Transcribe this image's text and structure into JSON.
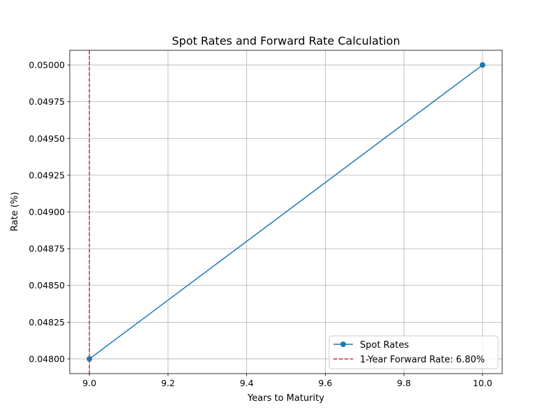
{
  "chart_data": {
    "type": "line",
    "title": "Spot Rates and Forward Rate Calculation",
    "xlabel": "Years to Maturity",
    "ylabel": "Rate (%)",
    "xlim": [
      8.95,
      10.05
    ],
    "ylim": [
      0.0479,
      0.0501
    ],
    "x_ticks": [
      9.0,
      9.2,
      9.4,
      9.6,
      9.8,
      10.0
    ],
    "x_tick_labels": [
      "9.0",
      "9.2",
      "9.4",
      "9.6",
      "9.8",
      "10.0"
    ],
    "y_ticks": [
      0.048,
      0.04825,
      0.0485,
      0.04875,
      0.049,
      0.04925,
      0.0495,
      0.04975,
      0.05
    ],
    "y_tick_labels": [
      "0.04800",
      "0.04825",
      "0.04850",
      "0.04875",
      "0.04900",
      "0.04925",
      "0.04950",
      "0.04975",
      "0.05000"
    ],
    "grid": true,
    "legend_position": "lower-right",
    "series": [
      {
        "name": "Spot Rates",
        "style": "solid-line-with-circle-markers",
        "color": "#1f77b4",
        "x": [
          9,
          10
        ],
        "y": [
          0.048,
          0.05
        ]
      }
    ],
    "vlines": [
      {
        "name": "1-Year Forward Rate: 6.80%",
        "x": 9,
        "style": "dashed",
        "color": "#d62728"
      }
    ]
  }
}
